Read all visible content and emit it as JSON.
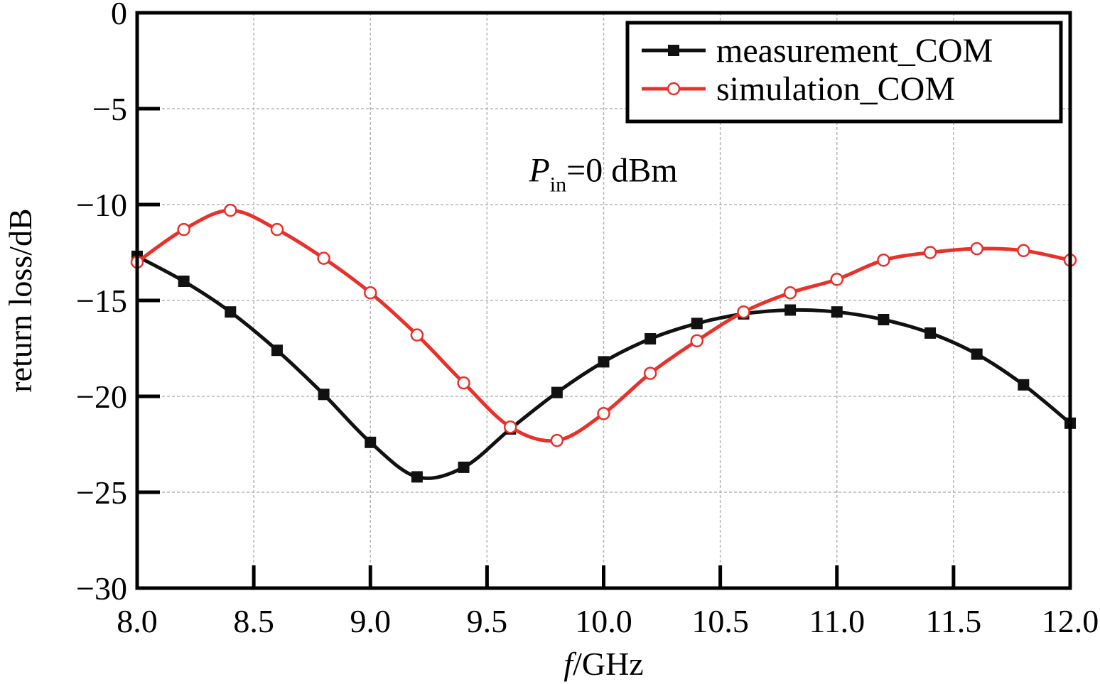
{
  "chart_data": {
    "type": "line",
    "xlabel_italic": "f",
    "xlabel_rest": "/GHz",
    "ylabel": "return loss/dB",
    "xlim": [
      8.0,
      12.0
    ],
    "ylim": [
      -30,
      0
    ],
    "x_ticks": [
      8.0,
      8.5,
      9.0,
      9.5,
      10.0,
      10.5,
      11.0,
      11.5,
      12.0
    ],
    "x_tick_labels": [
      "8.0",
      "8.5",
      "9.0",
      "9.5",
      "10.0",
      "10.5",
      "11.0",
      "11.5",
      "12.0"
    ],
    "y_ticks": [
      0,
      -5,
      -10,
      -15,
      -20,
      -25,
      -30
    ],
    "y_tick_labels": [
      "0",
      "−5",
      "−10",
      "−15",
      "−20",
      "−25",
      "−30"
    ],
    "grid": true,
    "legend_position": "top-right",
    "annotation": {
      "main": "P",
      "sub": "in",
      "rest": "=0 dBm",
      "x": 9.68,
      "y": -8.8
    },
    "series": [
      {
        "name": "measurement_COM",
        "color": "#111111",
        "marker": "filled-square",
        "x": [
          8.0,
          8.2,
          8.4,
          8.6,
          8.8,
          9.0,
          9.2,
          9.4,
          9.6,
          9.8,
          10.0,
          10.2,
          10.4,
          10.6,
          10.8,
          11.0,
          11.2,
          11.4,
          11.6,
          11.8,
          12.0
        ],
        "y": [
          -12.7,
          -14.0,
          -15.6,
          -17.6,
          -19.9,
          -22.4,
          -24.2,
          -23.7,
          -21.7,
          -19.8,
          -18.2,
          -17.0,
          -16.2,
          -15.7,
          -15.5,
          -15.6,
          -16.0,
          -16.7,
          -17.8,
          -19.4,
          -21.4
        ]
      },
      {
        "name": "simulation_COM",
        "color": "#e8312b",
        "marker": "open-circle",
        "x": [
          8.0,
          8.2,
          8.4,
          8.6,
          8.8,
          9.0,
          9.2,
          9.4,
          9.6,
          9.8,
          10.0,
          10.2,
          10.4,
          10.6,
          10.8,
          11.0,
          11.2,
          11.4,
          11.6,
          11.8,
          12.0
        ],
        "y": [
          -13.0,
          -11.3,
          -10.3,
          -11.3,
          -12.8,
          -14.6,
          -16.8,
          -19.3,
          -21.6,
          -22.3,
          -20.9,
          -18.8,
          -17.1,
          -15.6,
          -14.6,
          -13.9,
          -12.9,
          -12.5,
          -12.3,
          -12.4,
          -12.9
        ]
      }
    ]
  }
}
